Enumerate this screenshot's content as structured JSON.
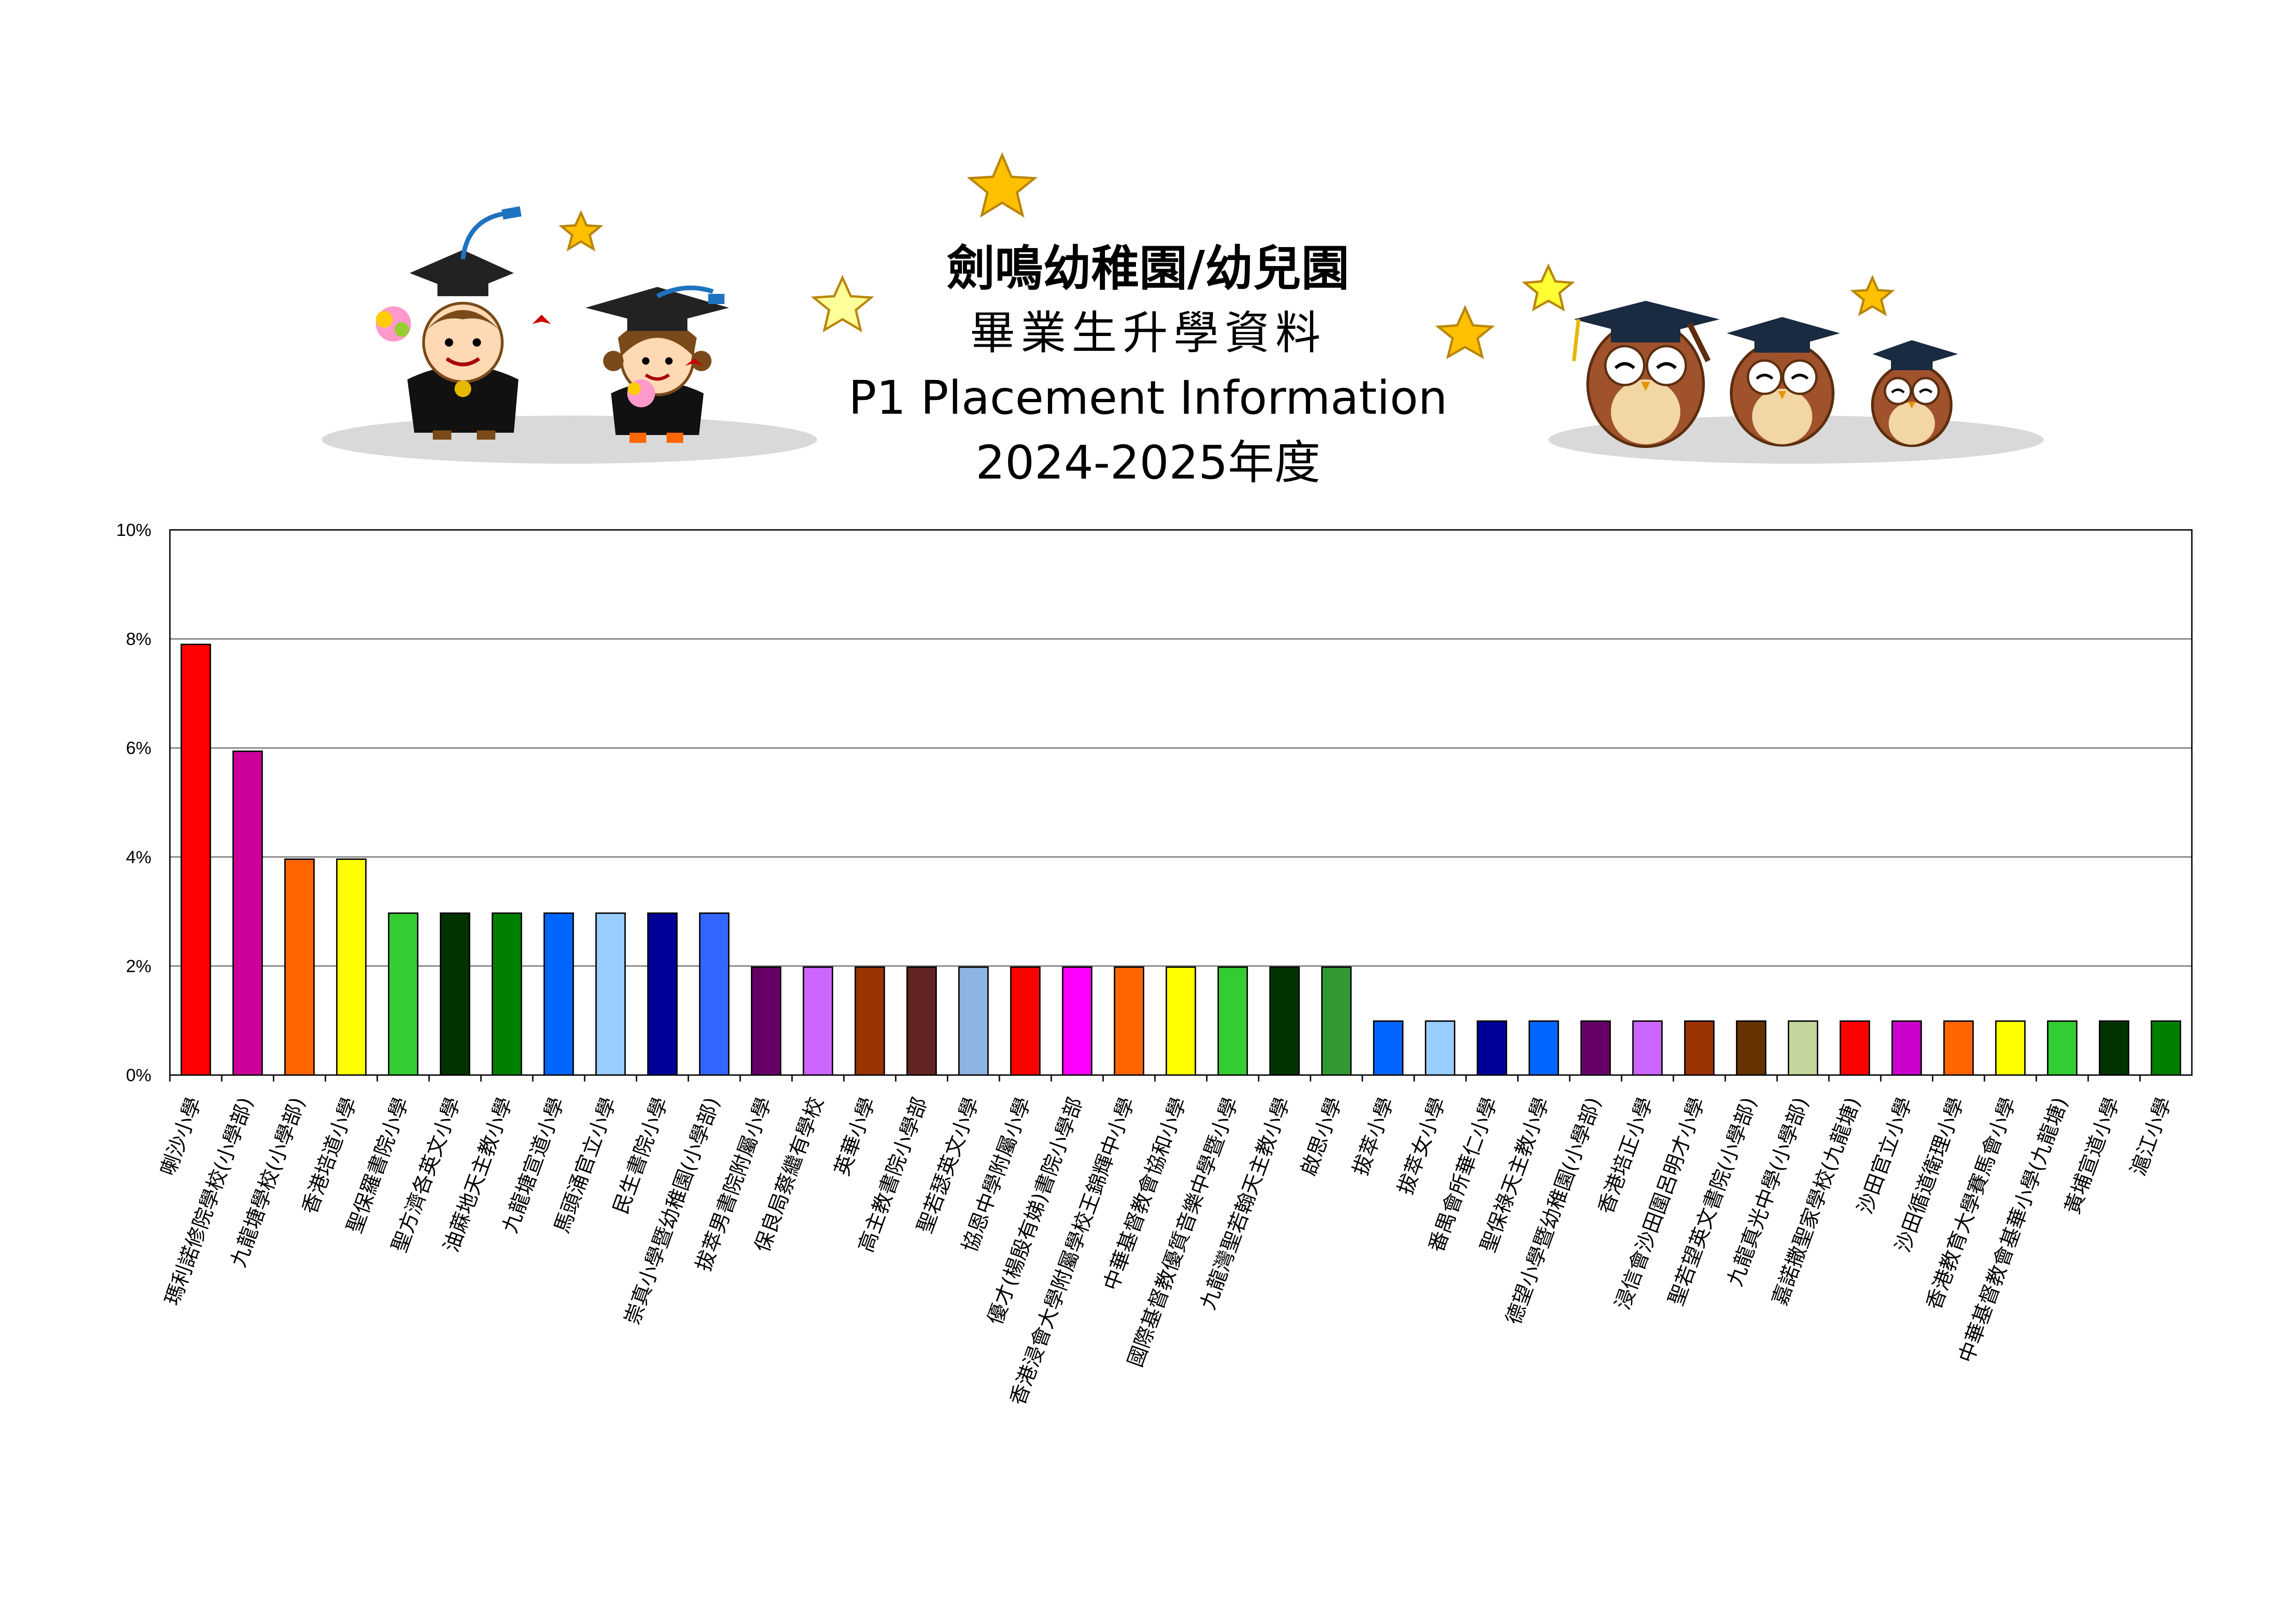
{
  "header": {
    "school_name": "劍鳴幼稚園/幼兒園",
    "subtitle_zh": "畢業生升學資料",
    "subtitle_en": "P1 Placement Information",
    "year": "2024-2025年度"
  },
  "chart_data": {
    "type": "bar",
    "title": "",
    "xlabel": "",
    "ylabel": "",
    "ylim": [
      0,
      10
    ],
    "y_ticks": [
      "0%",
      "2%",
      "4%",
      "6%",
      "8%",
      "10%"
    ],
    "y_tick_values": [
      0,
      2,
      4,
      6,
      8,
      10
    ],
    "grid": true,
    "legend": "none",
    "categories": [
      "喇沙小學",
      "瑪利諾修院學校(小學部)",
      "九龍塘學校(小學部)",
      "香港培道小學",
      "聖保羅書院小學",
      "聖方濟各英文小學",
      "油蔴地天主教小學",
      "九龍塘宣道小學",
      "馬頭涌官立小學",
      "民生書院小學",
      "崇真小學暨幼稚園(小學部)",
      "拔萃男書院附屬小學",
      "保良局蔡繼有學校",
      "英華小學",
      "高主教書院小學部",
      "聖若瑟英文小學",
      "協恩中學附屬小學",
      "優才(楊殷有娣)書院小學部",
      "香港浸會大學附屬學校王錦輝中小學",
      "中華基督教會協和小學",
      "國際基督教優質音樂中學暨小學",
      "九龍灣聖若翰天主教小學",
      "啟思小學",
      "拔萃小學",
      "拔萃女小學",
      "番禺會所華仁小學",
      "聖保祿天主教小學",
      "德望小學暨幼稚園(小學部)",
      "香港培正小學",
      "浸信會沙田圍呂明才小學",
      "聖若望英文書院(小學部)",
      "九龍真光中學(小學部)",
      "嘉諾撒聖家學校(九龍塘)",
      "沙田官立小學",
      "沙田循道衛理小學",
      "香港教育大學賽馬會小學",
      "中華基督教會基華小學(九龍塘)",
      "黃埔宣道小學",
      "滬江小學"
    ],
    "values": [
      7.9,
      5.94,
      3.96,
      3.96,
      2.97,
      2.97,
      2.97,
      2.97,
      2.97,
      2.97,
      2.97,
      1.98,
      1.98,
      1.98,
      1.98,
      1.98,
      1.98,
      1.98,
      1.98,
      1.98,
      1.98,
      1.98,
      1.98,
      0.99,
      0.99,
      0.99,
      0.99,
      0.99,
      0.99,
      0.99,
      0.99,
      0.99,
      0.99,
      0.99,
      0.99,
      0.99,
      0.99,
      0.99,
      0.99
    ],
    "colors": [
      "#FF0000",
      "#CC0099",
      "#FF6600",
      "#FFFF00",
      "#33CC33",
      "#003300",
      "#008000",
      "#0066FF",
      "#99CCFF",
      "#000099",
      "#3366FF",
      "#660066",
      "#CC66FF",
      "#993300",
      "#632523",
      "#8EB4E3",
      "#FF0000",
      "#FF00FF",
      "#FF6600",
      "#FFFF00",
      "#33CC33",
      "#003300",
      "#339933",
      "#0066FF",
      "#99CCFF",
      "#000099",
      "#0066FF",
      "#660066",
      "#CC66FF",
      "#993300",
      "#663300",
      "#C3D69B",
      "#FF0000",
      "#CC00CC",
      "#FF6600",
      "#FFFF00",
      "#33CC33",
      "#003300",
      "#008000"
    ]
  },
  "decorations": {
    "left_art": "graduate-children-icon",
    "right_art": "graduate-owls-icon",
    "stars": "star-icon"
  }
}
